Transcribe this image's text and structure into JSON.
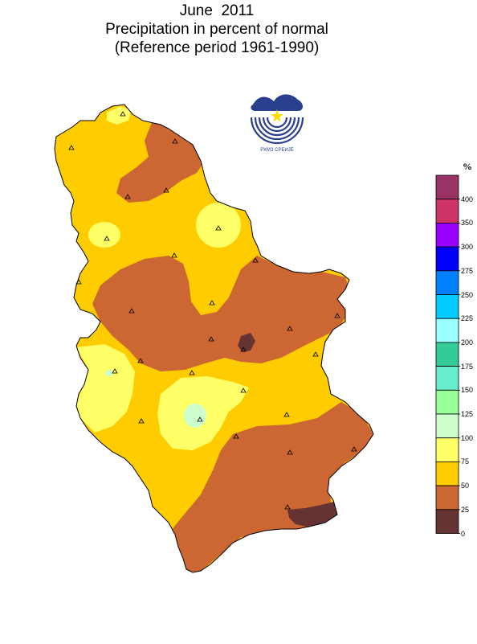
{
  "header": {
    "title_line1": "June  2011",
    "title_line2": "Precipitation in percent of normal",
    "title_line3": "(Reference period 1961-1990)"
  },
  "logo": {
    "icon": "rhmz-srbije-logo-icon",
    "text": "РХМЗ  СРБИЈЕ"
  },
  "legend": {
    "unit": "%",
    "levels": [
      {
        "label": "400",
        "color": "#993366"
      },
      {
        "label": "350",
        "color": "#cc3366"
      },
      {
        "label": "300",
        "color": "#9900ff"
      },
      {
        "label": "275",
        "color": "#0000ff"
      },
      {
        "label": "250",
        "color": "#0080ff"
      },
      {
        "label": "225",
        "color": "#00ccff"
      },
      {
        "label": "200",
        "color": "#99ffff"
      },
      {
        "label": "175",
        "color": "#33cc99"
      },
      {
        "label": "150",
        "color": "#66eecc"
      },
      {
        "label": "125",
        "color": "#99ff99"
      },
      {
        "label": "100",
        "color": "#ccffcc"
      },
      {
        "label": "75",
        "color": "#ffff66"
      },
      {
        "label": "50",
        "color": "#ffcc00"
      },
      {
        "label": "25",
        "color": "#cc6633"
      },
      {
        "label": "0",
        "color": "#663333"
      }
    ]
  },
  "map": {
    "station_icon": "triangle-station-icon",
    "zone_colors": {
      "band_25_50": "#cc6633",
      "band_50_75": "#ffcc00",
      "band_75_100": "#ffff66",
      "band_100_125": "#ccffcc",
      "band_0_25": "#663333"
    }
  }
}
